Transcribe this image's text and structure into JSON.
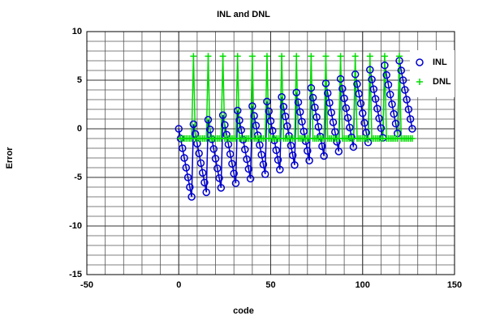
{
  "chart_data": {
    "type": "line",
    "title": "INL and DNL",
    "xlabel": "code",
    "ylabel": "Error",
    "xlim": [
      -50,
      150
    ],
    "xticks": [
      -50,
      0,
      50,
      100,
      150
    ],
    "ylim": [
      -15,
      10
    ],
    "yticks": [
      -15,
      -10,
      -5,
      0,
      5,
      10
    ],
    "grid": true,
    "minor_grid": {
      "x": 10,
      "y": 1
    },
    "legend": "upper right",
    "series": [
      {
        "name": "INL",
        "color": "#0000cc",
        "marker": "circle",
        "x": [
          0,
          1,
          2,
          3,
          4,
          5,
          6,
          7,
          8,
          9,
          10,
          11,
          12,
          13,
          14,
          15,
          16,
          17,
          18,
          19,
          20,
          21,
          22,
          23,
          24,
          25,
          26,
          27,
          28,
          29,
          30,
          31,
          32,
          33,
          34,
          35,
          36,
          37,
          38,
          39,
          40,
          41,
          42,
          43,
          44,
          45,
          46,
          47,
          48,
          49,
          50,
          51,
          52,
          53,
          54,
          55,
          56,
          57,
          58,
          59,
          60,
          61,
          62,
          63,
          64,
          65,
          66,
          67,
          68,
          69,
          70,
          71,
          72,
          73,
          74,
          75,
          76,
          77,
          78,
          79,
          80,
          81,
          82,
          83,
          84,
          85,
          86,
          87,
          88,
          89,
          90,
          91,
          92,
          93,
          94,
          95,
          96,
          97,
          98,
          99,
          100,
          101,
          102,
          103,
          104,
          105,
          106,
          107,
          108,
          109,
          110,
          111,
          112,
          113,
          114,
          115,
          116,
          117,
          118,
          119,
          120,
          121,
          122,
          123,
          124,
          125,
          126,
          127
        ],
        "values": [
          0,
          -1,
          -2,
          -3,
          -4,
          -5,
          -6,
          -7,
          0.47,
          -0.53,
          -1.53,
          -2.53,
          -3.53,
          -4.53,
          -5.53,
          -6.53,
          0.93,
          -0.07,
          -1.07,
          -2.07,
          -3.07,
          -4.07,
          -5.07,
          -6.07,
          1.4,
          0.4,
          -0.6,
          -1.6,
          -2.6,
          -3.6,
          -4.6,
          -5.6,
          1.87,
          0.87,
          -0.13,
          -1.13,
          -2.13,
          -3.13,
          -4.13,
          -5.13,
          2.33,
          1.33,
          0.33,
          -0.67,
          -1.67,
          -2.67,
          -3.67,
          -4.67,
          2.8,
          1.8,
          0.8,
          -0.2,
          -1.2,
          -2.2,
          -3.2,
          -4.2,
          3.27,
          2.27,
          1.27,
          0.27,
          -0.73,
          -1.73,
          -2.73,
          -3.73,
          3.73,
          2.73,
          1.73,
          0.73,
          -0.27,
          -1.27,
          -2.27,
          -3.27,
          4.2,
          3.2,
          2.2,
          1.2,
          0.2,
          -0.8,
          -1.8,
          -2.8,
          4.67,
          3.67,
          2.67,
          1.67,
          0.67,
          -0.33,
          -1.33,
          -2.33,
          5.13,
          4.13,
          3.13,
          2.13,
          1.13,
          0.13,
          -0.87,
          -1.87,
          5.6,
          4.6,
          3.6,
          2.6,
          1.6,
          0.6,
          -0.4,
          -1.4,
          6.07,
          5.07,
          4.07,
          3.07,
          2.07,
          1.07,
          0.07,
          -0.93,
          6.53,
          5.53,
          4.53,
          3.53,
          2.53,
          1.53,
          0.53,
          -0.47,
          7,
          6,
          5,
          4,
          3,
          2,
          1,
          0
        ]
      },
      {
        "name": "DNL",
        "color": "#00dd00",
        "marker": "plus",
        "x": [
          1,
          2,
          3,
          4,
          5,
          6,
          7,
          8,
          9,
          10,
          11,
          12,
          13,
          14,
          15,
          16,
          17,
          18,
          19,
          20,
          21,
          22,
          23,
          24,
          25,
          26,
          27,
          28,
          29,
          30,
          31,
          32,
          33,
          34,
          35,
          36,
          37,
          38,
          39,
          40,
          41,
          42,
          43,
          44,
          45,
          46,
          47,
          48,
          49,
          50,
          51,
          52,
          53,
          54,
          55,
          56,
          57,
          58,
          59,
          60,
          61,
          62,
          63,
          64,
          65,
          66,
          67,
          68,
          69,
          70,
          71,
          72,
          73,
          74,
          75,
          76,
          77,
          78,
          79,
          80,
          81,
          82,
          83,
          84,
          85,
          86,
          87,
          88,
          89,
          90,
          91,
          92,
          93,
          94,
          95,
          96,
          97,
          98,
          99,
          100,
          101,
          102,
          103,
          104,
          105,
          106,
          107,
          108,
          109,
          110,
          111,
          112,
          113,
          114,
          115,
          116,
          117,
          118,
          119,
          120,
          121,
          122,
          123,
          124,
          125,
          126,
          127
        ],
        "values": [
          -1,
          -1,
          -1,
          -1,
          -1,
          -1,
          -1,
          7.47,
          -1,
          -1,
          -1,
          -1,
          -1,
          -1,
          -1,
          7.47,
          -1,
          -1,
          -1,
          -1,
          -1,
          -1,
          -1,
          7.47,
          -1,
          -1,
          -1,
          -1,
          -1,
          -1,
          -1,
          7.47,
          -1,
          -1,
          -1,
          -1,
          -1,
          -1,
          -1,
          7.47,
          -1,
          -1,
          -1,
          -1,
          -1,
          -1,
          -1,
          7.47,
          -1,
          -1,
          -1,
          -1,
          -1,
          -1,
          -1,
          7.47,
          -1,
          -1,
          -1,
          -1,
          -1,
          -1,
          -1,
          7.47,
          -1,
          -1,
          -1,
          -1,
          -1,
          -1,
          -1,
          7.47,
          -1,
          -1,
          -1,
          -1,
          -1,
          -1,
          -1,
          7.47,
          -1,
          -1,
          -1,
          -1,
          -1,
          -1,
          -1,
          7.47,
          -1,
          -1,
          -1,
          -1,
          -1,
          -1,
          -1,
          7.47,
          -1,
          -1,
          -1,
          -1,
          -1,
          -1,
          -1,
          7.47,
          -1,
          -1,
          -1,
          -1,
          -1,
          -1,
          -1,
          7.47,
          -1,
          -1,
          -1,
          -1,
          -1,
          -1,
          -1,
          7.47,
          -1,
          -1,
          -1,
          -1,
          -1,
          -1,
          -1
        ]
      }
    ]
  }
}
